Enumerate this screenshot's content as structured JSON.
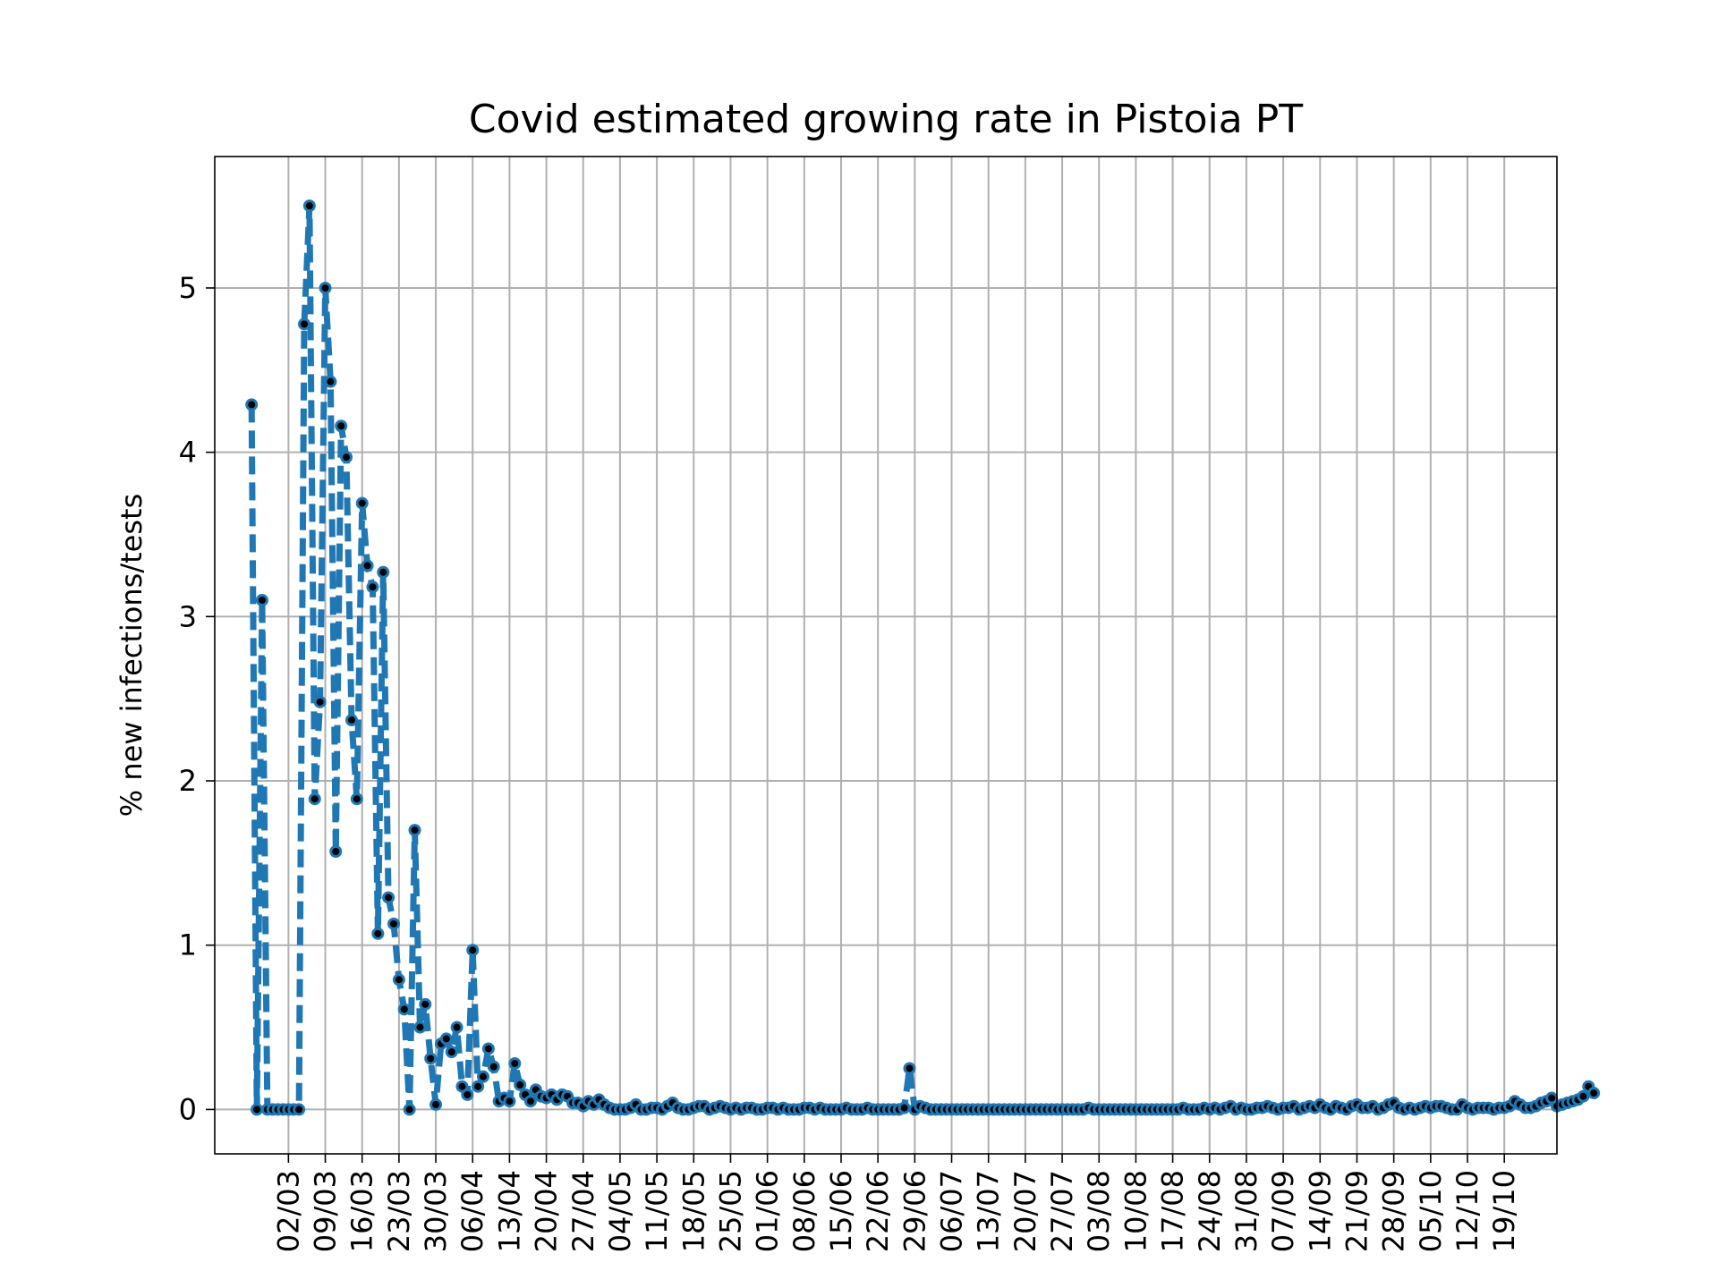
{
  "chart_data": {
    "type": "line",
    "title": "Covid estimated growing rate in Pistoia PT",
    "xlabel": "",
    "ylabel": "% new infections/tests",
    "ylim": [
      -0.27,
      5.8
    ],
    "xlim": [
      "2020-02-17",
      "2020-10-29"
    ],
    "yticks": [
      0,
      1,
      2,
      3,
      4,
      5
    ],
    "xticks": [
      "02/03",
      "09/03",
      "16/03",
      "23/03",
      "30/03",
      "06/04",
      "13/04",
      "20/04",
      "27/04",
      "04/05",
      "11/05",
      "18/05",
      "25/05",
      "01/06",
      "08/06",
      "15/06",
      "22/06",
      "29/06",
      "06/07",
      "13/07",
      "20/07",
      "27/07",
      "03/08",
      "10/08",
      "17/08",
      "24/08",
      "31/08",
      "07/09",
      "14/09",
      "21/09",
      "28/09",
      "05/10",
      "12/10",
      "19/10"
    ],
    "grid": true,
    "line_color": "#1f77b4",
    "marker_color": "#000000",
    "line_style": "dashed",
    "start_date": "2020-02-24",
    "values": [
      4.29,
      0.0,
      3.1,
      0.0,
      0.0,
      0.0,
      0.0,
      0.0,
      0.0,
      0.0,
      4.78,
      5.5,
      1.89,
      2.48,
      5.0,
      4.43,
      1.57,
      4.16,
      3.97,
      2.37,
      1.89,
      3.69,
      3.31,
      3.18,
      1.07,
      3.27,
      1.29,
      1.13,
      0.79,
      0.61,
      0.0,
      1.7,
      0.5,
      0.64,
      0.31,
      0.03,
      0.4,
      0.43,
      0.35,
      0.5,
      0.14,
      0.09,
      0.97,
      0.14,
      0.2,
      0.37,
      0.26,
      0.05,
      0.07,
      0.05,
      0.28,
      0.15,
      0.09,
      0.05,
      0.12,
      0.08,
      0.07,
      0.09,
      0.06,
      0.09,
      0.08,
      0.04,
      0.04,
      0.02,
      0.05,
      0.03,
      0.06,
      0.03,
      0.01,
      0.0,
      0.0,
      0.0,
      0.01,
      0.03,
      0.0,
      0.0,
      0.01,
      0.01,
      0.0,
      0.02,
      0.04,
      0.01,
      0.0,
      0.0,
      0.01,
      0.02,
      0.02,
      0.0,
      0.01,
      0.02,
      0.01,
      0.0,
      0.01,
      0.0,
      0.01,
      0.01,
      0.0,
      0.0,
      0.01,
      0.01,
      0.0,
      0.01,
      0.0,
      0.0,
      0.0,
      0.01,
      0.01,
      0.0,
      0.01,
      0.0,
      0.0,
      0.0,
      0.0,
      0.01,
      0.0,
      0.0,
      0.0,
      0.01,
      0.0,
      0.0,
      0.0,
      0.0,
      0.0,
      0.0,
      0.01,
      0.25,
      0.0,
      0.02,
      0.01,
      0.0,
      0.0,
      0.0,
      0.0,
      0.0,
      0.0,
      0.0,
      0.0,
      0.0,
      0.0,
      0.0,
      0.0,
      0.0,
      0.0,
      0.0,
      0.0,
      0.0,
      0.0,
      0.0,
      0.0,
      0.0,
      0.0,
      0.0,
      0.0,
      0.0,
      0.0,
      0.0,
      0.0,
      0.0,
      0.0,
      0.01,
      0.0,
      0.0,
      0.0,
      0.0,
      0.0,
      0.0,
      0.0,
      0.0,
      0.0,
      0.0,
      0.0,
      0.0,
      0.0,
      0.0,
      0.0,
      0.0,
      0.0,
      0.01,
      0.0,
      0.0,
      0.0,
      0.01,
      0.0,
      0.01,
      0.0,
      0.01,
      0.02,
      0.0,
      0.01,
      0.0,
      0.0,
      0.01,
      0.01,
      0.02,
      0.01,
      0.0,
      0.01,
      0.01,
      0.02,
      0.0,
      0.01,
      0.02,
      0.01,
      0.03,
      0.01,
      0.0,
      0.02,
      0.01,
      0.0,
      0.02,
      0.03,
      0.01,
      0.01,
      0.02,
      0.0,
      0.01,
      0.03,
      0.04,
      0.01,
      0.0,
      0.01,
      0.0,
      0.01,
      0.02,
      0.01,
      0.02,
      0.02,
      0.01,
      0.0,
      0.0,
      0.03,
      0.01,
      0.0,
      0.01,
      0.01,
      0.01,
      0.0,
      0.01,
      0.01,
      0.02,
      0.05,
      0.03,
      0.01,
      0.01,
      0.02,
      0.04,
      0.05,
      0.07,
      0.02,
      0.03,
      0.04,
      0.05,
      0.06,
      0.08,
      0.14,
      0.1
    ]
  }
}
